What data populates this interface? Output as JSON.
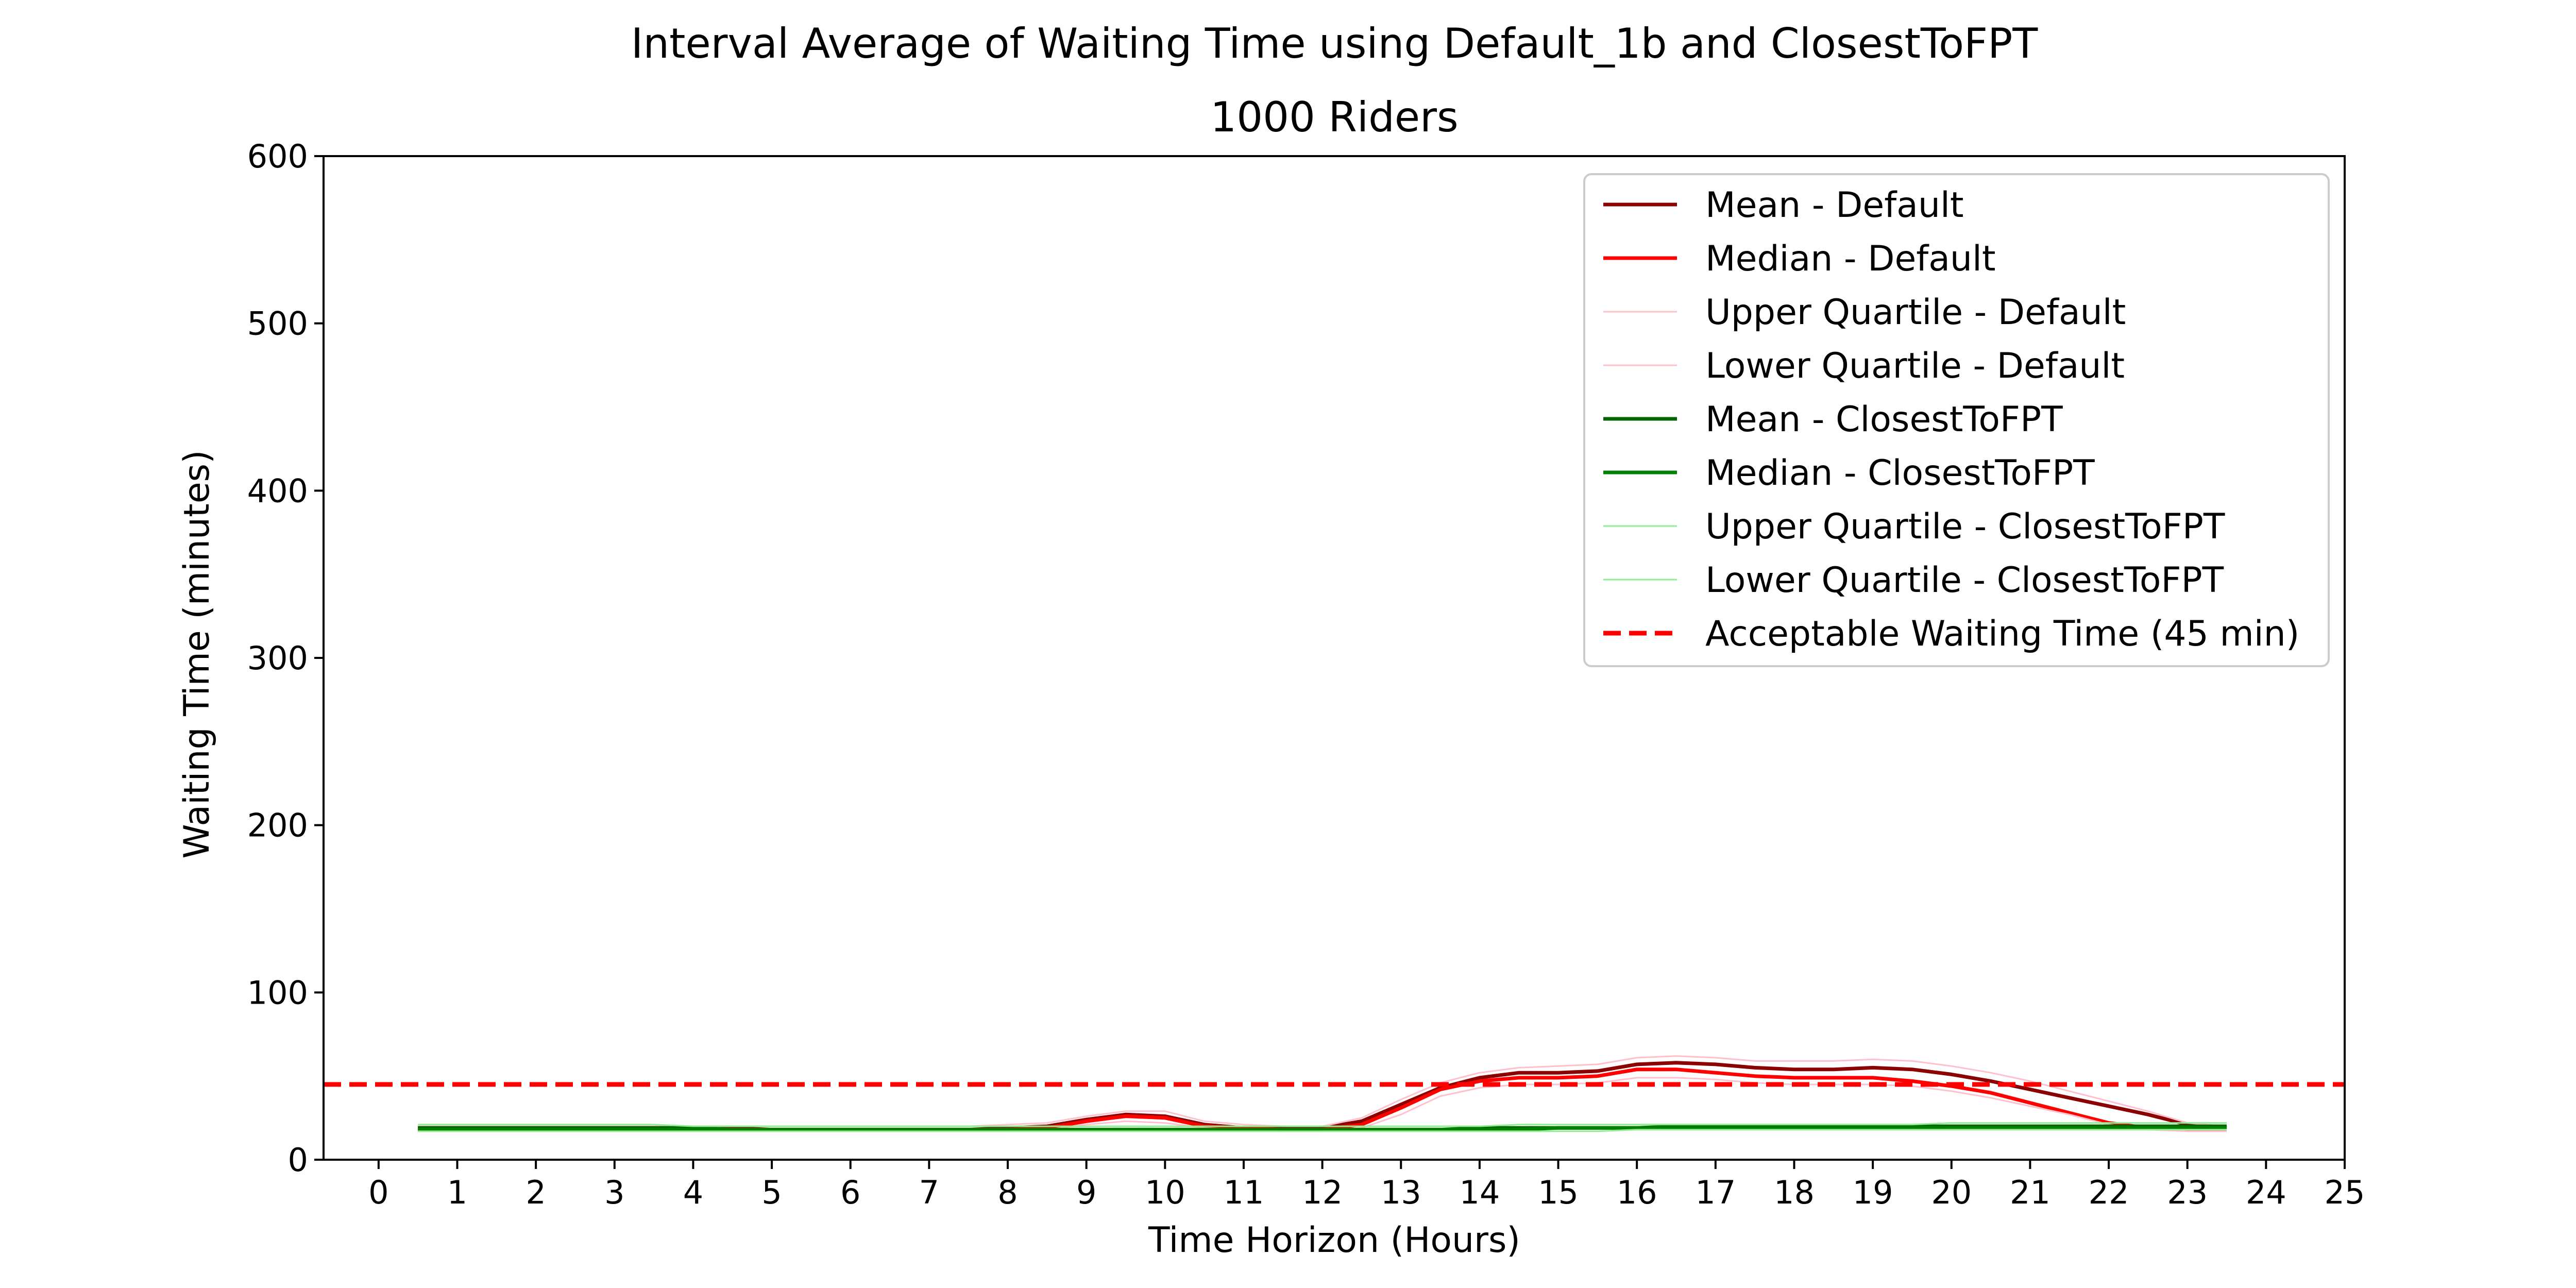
{
  "chart_data": {
    "type": "line",
    "title": "Interval Average of Waiting Time using Default_1b and ClosestToFPT",
    "subtitle": "1000 Riders",
    "xlabel": "Time Horizon (Hours)",
    "ylabel": "Waiting Time (minutes)",
    "xlim": [
      -0.7,
      25
    ],
    "ylim": [
      0,
      600
    ],
    "xticks": [
      "0",
      "1",
      "2",
      "3",
      "4",
      "5",
      "6",
      "7",
      "8",
      "9",
      "10",
      "11",
      "12",
      "13",
      "14",
      "15",
      "16",
      "17",
      "18",
      "19",
      "20",
      "21",
      "22",
      "23",
      "24",
      "25"
    ],
    "yticks": [
      "0",
      "100",
      "200",
      "300",
      "400",
      "500",
      "600"
    ],
    "grid": false,
    "legend_position": "top-right",
    "x": [
      0.5,
      1,
      1.5,
      2,
      2.5,
      3,
      3.5,
      4,
      4.5,
      5,
      5.5,
      6,
      6.5,
      7,
      7.5,
      8,
      8.5,
      9,
      9.5,
      10,
      10.5,
      11,
      11.5,
      12,
      12.5,
      13,
      13.5,
      14,
      14.5,
      15,
      15.5,
      16,
      16.5,
      17,
      17.5,
      18,
      18.5,
      19,
      19.5,
      20,
      20.5,
      21,
      21.5,
      22,
      22.5,
      23,
      23.5
    ],
    "series": [
      {
        "name": "Mean - Default",
        "color": "#8b0000",
        "width": "thick",
        "style": "solid",
        "values": [
          19,
          19,
          19,
          19,
          19,
          19,
          19,
          19,
          19,
          18,
          18,
          18,
          18,
          18,
          18,
          19,
          20,
          24,
          27,
          26,
          21,
          19,
          19,
          19,
          23,
          33,
          43,
          49,
          52,
          52,
          53,
          57,
          58,
          57,
          55,
          54,
          54,
          55,
          54,
          51,
          47,
          42,
          37,
          32,
          27,
          21,
          19
        ]
      },
      {
        "name": "Median - Default",
        "color": "#ff0000",
        "width": "thick",
        "style": "solid",
        "values": [
          18,
          18,
          18,
          18,
          18,
          18,
          18,
          18,
          18,
          18,
          18,
          18,
          18,
          18,
          18,
          18,
          19,
          23,
          26,
          25,
          20,
          19,
          18,
          18,
          21,
          31,
          42,
          47,
          49,
          49,
          50,
          54,
          54,
          52,
          50,
          49,
          49,
          49,
          47,
          44,
          40,
          34,
          28,
          22,
          19,
          18,
          18
        ]
      },
      {
        "name": "Upper Quartile - Default",
        "color": "#ffc0cb",
        "width": "thin",
        "style": "solid",
        "values": [
          20,
          20,
          20,
          20,
          20,
          20,
          20,
          20,
          20,
          20,
          20,
          20,
          20,
          20,
          20,
          21,
          22,
          26,
          29,
          29,
          23,
          21,
          20,
          20,
          25,
          36,
          46,
          52,
          55,
          56,
          57,
          61,
          62,
          61,
          59,
          59,
          59,
          60,
          59,
          56,
          52,
          47,
          41,
          35,
          29,
          22,
          20
        ]
      },
      {
        "name": "Lower Quartile - Default",
        "color": "#ffc0cb",
        "width": "thin",
        "style": "solid",
        "values": [
          17,
          17,
          17,
          17,
          17,
          17,
          17,
          17,
          17,
          17,
          17,
          17,
          17,
          17,
          17,
          17,
          18,
          21,
          23,
          22,
          19,
          18,
          17,
          17,
          19,
          27,
          38,
          43,
          45,
          45,
          46,
          49,
          49,
          48,
          46,
          45,
          45,
          45,
          44,
          41,
          37,
          32,
          27,
          21,
          18,
          17,
          17
        ]
      },
      {
        "name": "Mean - ClosestToFPT",
        "color": "#006400",
        "width": "thick",
        "style": "solid",
        "values": [
          19,
          19,
          19,
          19,
          19,
          19,
          19,
          19,
          18,
          18,
          18,
          18,
          18,
          18,
          18,
          18,
          18,
          18,
          18,
          18,
          18,
          18,
          18,
          18,
          18,
          18,
          18,
          19,
          19,
          19,
          19,
          19,
          20,
          20,
          20,
          20,
          20,
          20,
          20,
          20,
          20,
          20,
          20,
          20,
          20,
          20,
          20
        ]
      },
      {
        "name": "Median - ClosestToFPT",
        "color": "#008000",
        "width": "thick",
        "style": "solid",
        "values": [
          18,
          18,
          18,
          18,
          18,
          18,
          18,
          18,
          18,
          18,
          18,
          18,
          18,
          18,
          18,
          18,
          18,
          18,
          18,
          18,
          18,
          18,
          18,
          18,
          18,
          18,
          18,
          18,
          18,
          19,
          19,
          19,
          19,
          19,
          19,
          19,
          19,
          19,
          19,
          19,
          19,
          19,
          19,
          19,
          19,
          19,
          19
        ]
      },
      {
        "name": "Upper Quartile - ClosestToFPT",
        "color": "#90ee90",
        "width": "thin",
        "style": "solid",
        "values": [
          21,
          21,
          21,
          21,
          21,
          21,
          21,
          20,
          20,
          20,
          20,
          20,
          20,
          20,
          20,
          20,
          20,
          20,
          20,
          20,
          20,
          20,
          20,
          20,
          20,
          20,
          20,
          20,
          21,
          21,
          21,
          21,
          21,
          21,
          21,
          21,
          21,
          21,
          21,
          22,
          22,
          22,
          22,
          22,
          22,
          22,
          22
        ]
      },
      {
        "name": "Lower Quartile - ClosestToFPT",
        "color": "#90ee90",
        "width": "thin",
        "style": "solid",
        "values": [
          17,
          17,
          17,
          17,
          17,
          17,
          17,
          17,
          17,
          17,
          17,
          17,
          17,
          17,
          17,
          17,
          17,
          17,
          17,
          17,
          17,
          17,
          17,
          17,
          17,
          17,
          17,
          17,
          17,
          17,
          17,
          18,
          18,
          18,
          18,
          18,
          18,
          18,
          18,
          18,
          18,
          18,
          18,
          18,
          18,
          18,
          18
        ]
      },
      {
        "name": "Acceptable Waiting Time (45 min)",
        "color": "#ff0000",
        "width": "thick",
        "style": "dashed",
        "constant": 45
      }
    ]
  }
}
